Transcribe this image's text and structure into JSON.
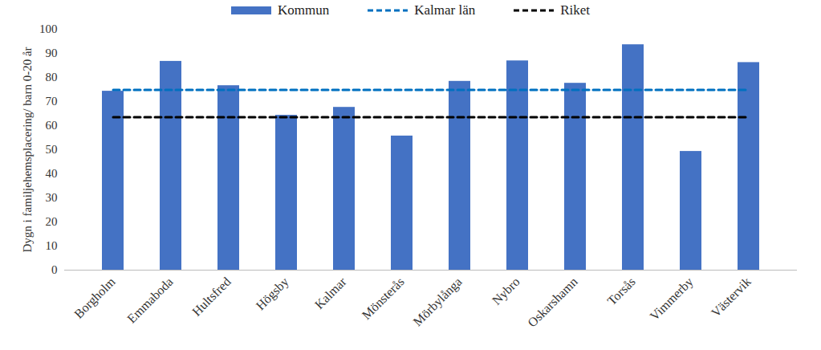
{
  "chart_data": {
    "type": "bar",
    "y_label": "Dygn i familjehemsplacering/ barn 0-20 år",
    "categories": [
      "Borgholm",
      "Emmaboda",
      "Hultsfred",
      "Högsby",
      "Kalmar",
      "Mönsterås",
      "Mörbylånga",
      "Nybro",
      "Oskarshamn",
      "Torsås",
      "Vimmerby",
      "Västervik"
    ],
    "series": [
      {
        "name": "Kommun",
        "type": "bar",
        "color": "#4472c4",
        "values": [
          74.3,
          86.7,
          76.6,
          64.3,
          67.6,
          55.7,
          78.4,
          86.9,
          77.6,
          93.6,
          49.3,
          86.2
        ]
      },
      {
        "name": "Kalmar län",
        "type": "line",
        "line_style": "dashed",
        "color": "#0070c0",
        "values": [
          74.8,
          74.8,
          74.8,
          74.8,
          74.8,
          74.8,
          74.8,
          74.8,
          74.8,
          74.8,
          74.8,
          74.8
        ]
      },
      {
        "name": "Riket",
        "type": "line",
        "line_style": "dashed",
        "color": "#000000",
        "values": [
          63.5,
          63.5,
          63.5,
          63.5,
          63.5,
          63.5,
          63.5,
          63.5,
          63.5,
          63.5,
          63.5,
          63.5
        ]
      }
    ],
    "ylim": [
      0,
      100
    ],
    "yticks": [
      0,
      10,
      20,
      30,
      40,
      50,
      60,
      70,
      80,
      90,
      100
    ],
    "grid": false,
    "legend": "top"
  }
}
